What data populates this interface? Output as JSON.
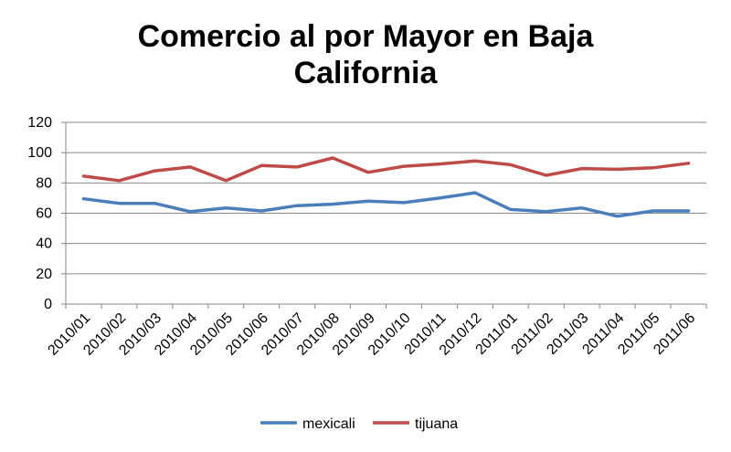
{
  "chart_data": {
    "type": "line",
    "title_lines": [
      "Comercio al por Mayor en Baja",
      "California"
    ],
    "categories": [
      "2010/01",
      "2010/02",
      "2010/03",
      "2010/04",
      "2010/05",
      "2010/06",
      "2010/07",
      "2010/08",
      "2010/09",
      "2010/10",
      "2010/11",
      "2010/12",
      "2011/01",
      "2011/02",
      "2011/03",
      "2011/04",
      "2011/05",
      "2011/06"
    ],
    "ylim": [
      0,
      120
    ],
    "yticks": [
      "0",
      "20",
      "40",
      "60",
      "80",
      "100",
      "120"
    ],
    "grid": true,
    "legend_position": "bottom",
    "series": [
      {
        "name": "mexicali",
        "color": "#4a7ebb",
        "values": [
          69.5,
          66.5,
          66.5,
          61,
          63.5,
          61.5,
          65,
          66,
          68,
          67,
          70,
          73.5,
          62.5,
          61,
          63.5,
          58,
          61.5,
          61.5
        ]
      },
      {
        "name": "tijuana",
        "color": "#be4b48",
        "values": [
          84.5,
          81.5,
          88,
          90.5,
          81.5,
          91.5,
          90.5,
          96.5,
          87,
          91,
          92.5,
          94.5,
          92,
          85,
          89.5,
          89,
          90,
          93
        ]
      }
    ]
  }
}
